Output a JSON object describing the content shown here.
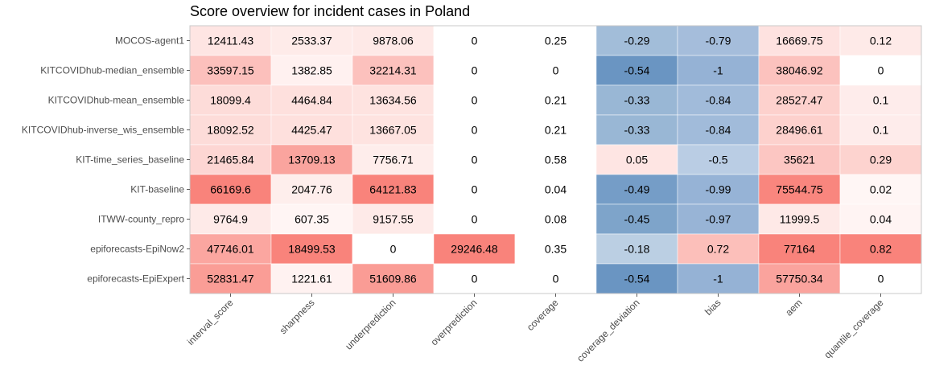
{
  "chart_data": {
    "type": "heatmap",
    "title": "Score overview for incident cases in Poland",
    "models": [
      "MOCOS-agent1",
      "KITCOVIDhub-median_ensemble",
      "KITCOVIDhub-mean_ensemble",
      "KITCOVIDhub-inverse_wis_ensemble",
      "KIT-time_series_baseline",
      "KIT-baseline",
      "ITWW-county_repro",
      "epiforecasts-EpiNow2",
      "epiforecasts-EpiExpert"
    ],
    "metrics": [
      "interval_score",
      "sharpness",
      "underprediction",
      "overprediction",
      "coverage",
      "coverage_deviation",
      "bias",
      "aem",
      "quantile_coverage"
    ],
    "values": [
      [
        "12411.43",
        "2533.37",
        "9878.06",
        "0",
        "0.25",
        "-0.29",
        "-0.79",
        "16669.75",
        "0.12"
      ],
      [
        "33597.15",
        "1382.85",
        "32214.31",
        "0",
        "0",
        "-0.54",
        "-1",
        "38046.92",
        "0"
      ],
      [
        "18099.4",
        "4464.84",
        "13634.56",
        "0",
        "0.21",
        "-0.33",
        "-0.84",
        "28527.47",
        "0.1"
      ],
      [
        "18092.52",
        "4425.47",
        "13667.05",
        "0",
        "0.21",
        "-0.33",
        "-0.84",
        "28496.61",
        "0.1"
      ],
      [
        "21465.84",
        "13709.13",
        "7756.71",
        "0",
        "0.58",
        "0.05",
        "-0.5",
        "35621",
        "0.29"
      ],
      [
        "66169.6",
        "2047.76",
        "64121.83",
        "0",
        "0.04",
        "-0.49",
        "-0.99",
        "75544.75",
        "0.02"
      ],
      [
        "9764.9",
        "607.35",
        "9157.55",
        "0",
        "0.08",
        "-0.45",
        "-0.97",
        "11999.5",
        "0.04"
      ],
      [
        "47746.01",
        "18499.53",
        "0",
        "29246.48",
        "0.35",
        "-0.18",
        "0.72",
        "77164",
        "0.82"
      ],
      [
        "52831.47",
        "1221.61",
        "51609.86",
        "0",
        "0",
        "-0.54",
        "-1",
        "57750.34",
        "0"
      ]
    ],
    "colors": {
      "low": "#ffffff",
      "high_red": "#f8766d",
      "high_blue": "#4a7fb5",
      "panel_border": "#c8c8c8",
      "grid": "#ebebeb"
    }
  }
}
